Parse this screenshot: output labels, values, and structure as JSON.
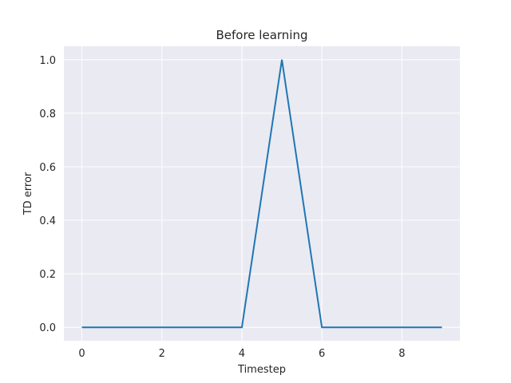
{
  "chart_data": {
    "type": "line",
    "title": "Before learning",
    "xlabel": "Timestep",
    "ylabel": "TD error",
    "x": [
      0,
      1,
      2,
      3,
      4,
      5,
      6,
      7,
      8,
      9
    ],
    "series": [
      {
        "values": [
          0.0,
          0.0,
          0.0,
          0.0,
          0.0,
          1.0,
          0.0,
          0.0,
          0.0,
          0.0
        ],
        "color": "#1f77b4"
      }
    ],
    "xlim": [
      -0.45,
      9.45
    ],
    "ylim": [
      -0.05,
      1.05
    ],
    "xticks": [
      0,
      2,
      4,
      6,
      8
    ],
    "xtick_labels": [
      "0",
      "2",
      "4",
      "6",
      "8"
    ],
    "yticks": [
      0.0,
      0.2,
      0.4,
      0.6,
      0.8,
      1.0
    ],
    "ytick_labels": [
      "0.0",
      "0.2",
      "0.4",
      "0.6",
      "0.8",
      "1.0"
    ],
    "grid": true,
    "background_color": "#eaeaf2",
    "grid_color": "#ffffff"
  }
}
